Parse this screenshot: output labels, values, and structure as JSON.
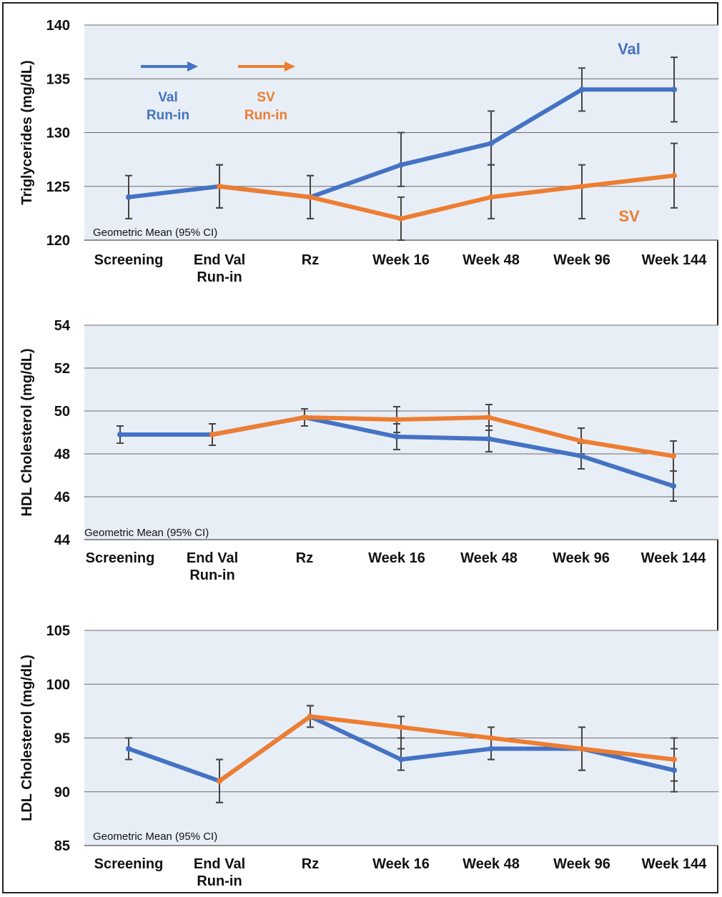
{
  "colors": {
    "val": "#4472C4",
    "sv": "#ED7D31",
    "plot_bg": "#E8EEF6",
    "grid": "#6b6b6b",
    "err": "#444444"
  },
  "chart_data": [
    {
      "type": "line",
      "ylabel": "Triglycerides (mg/dL)",
      "note": "Geometric Mean (95% CI)",
      "categories": [
        "Screening",
        "End Val\nRun-in",
        "Rz",
        "Week 16",
        "Week 48",
        "Week 96",
        "Week 144"
      ],
      "ylim": [
        120,
        140
      ],
      "yticks": [
        120,
        125,
        130,
        135,
        140
      ],
      "grid": true,
      "series": [
        {
          "name": "Val",
          "color_key": "val",
          "values": [
            124,
            125,
            124,
            127,
            129,
            134,
            134
          ],
          "lower": [
            122,
            123,
            122,
            125,
            127,
            132,
            131
          ],
          "upper": [
            126,
            127,
            126,
            130,
            132,
            136,
            137
          ]
        },
        {
          "name": "SV",
          "color_key": "sv",
          "start_index": 1,
          "values": [
            null,
            125,
            124,
            122,
            124,
            125,
            126
          ],
          "lower": [
            null,
            123,
            122,
            120,
            122,
            122,
            123
          ],
          "upper": [
            null,
            127,
            126,
            124,
            127,
            127,
            129
          ]
        }
      ],
      "annotations": {
        "val_label": "Val",
        "sv_label": "SV",
        "val_runin": [
          "Val",
          "Run-in"
        ],
        "sv_runin": [
          "SV",
          "Run-in"
        ]
      }
    },
    {
      "type": "line",
      "ylabel": "HDL Cholesterol (mg/dL)",
      "note": "Geometric Mean (95% CI)",
      "categories": [
        "Screening",
        "End Val\nRun-in",
        "Rz",
        "Week 16",
        "Week 48",
        "Week 96",
        "Week 144"
      ],
      "ylim": [
        44,
        54
      ],
      "yticks": [
        44,
        46,
        48,
        50,
        52,
        54
      ],
      "grid": true,
      "series": [
        {
          "name": "Val",
          "color_key": "val",
          "values": [
            48.9,
            48.9,
            49.7,
            48.8,
            48.7,
            47.9,
            46.5
          ],
          "lower": [
            48.5,
            48.4,
            49.3,
            48.2,
            48.1,
            47.3,
            45.8
          ],
          "upper": [
            49.3,
            49.4,
            50.1,
            49.4,
            49.3,
            48.5,
            47.2
          ]
        },
        {
          "name": "SV",
          "color_key": "sv",
          "start_index": 1,
          "values": [
            null,
            48.9,
            49.7,
            49.6,
            49.7,
            48.6,
            47.9
          ],
          "lower": [
            null,
            48.4,
            49.3,
            49.0,
            49.1,
            48.0,
            47.2
          ],
          "upper": [
            null,
            49.4,
            50.1,
            50.2,
            50.3,
            49.2,
            48.6
          ]
        }
      ]
    },
    {
      "type": "line",
      "ylabel": "LDL Cholesterol (mg/dL)",
      "note": "Geometric Mean (95% CI)",
      "categories": [
        "Screening",
        "End Val\nRun-in",
        "Rz",
        "Week 16",
        "Week 48",
        "Week 96",
        "Week 144"
      ],
      "ylim": [
        85,
        105
      ],
      "yticks": [
        85,
        90,
        95,
        100,
        105
      ],
      "grid": true,
      "series": [
        {
          "name": "Val",
          "color_key": "val",
          "values": [
            94,
            91,
            97,
            93,
            94,
            94,
            92
          ],
          "lower": [
            93,
            89,
            96,
            92,
            93,
            92,
            90
          ],
          "upper": [
            95,
            93,
            98,
            95,
            96,
            96,
            94
          ]
        },
        {
          "name": "SV",
          "color_key": "sv",
          "start_index": 1,
          "values": [
            null,
            91,
            97,
            96,
            95,
            94,
            93
          ],
          "lower": [
            null,
            89,
            96,
            94,
            93,
            92,
            91
          ],
          "upper": [
            null,
            93,
            98,
            97,
            96,
            96,
            95
          ]
        }
      ]
    }
  ]
}
